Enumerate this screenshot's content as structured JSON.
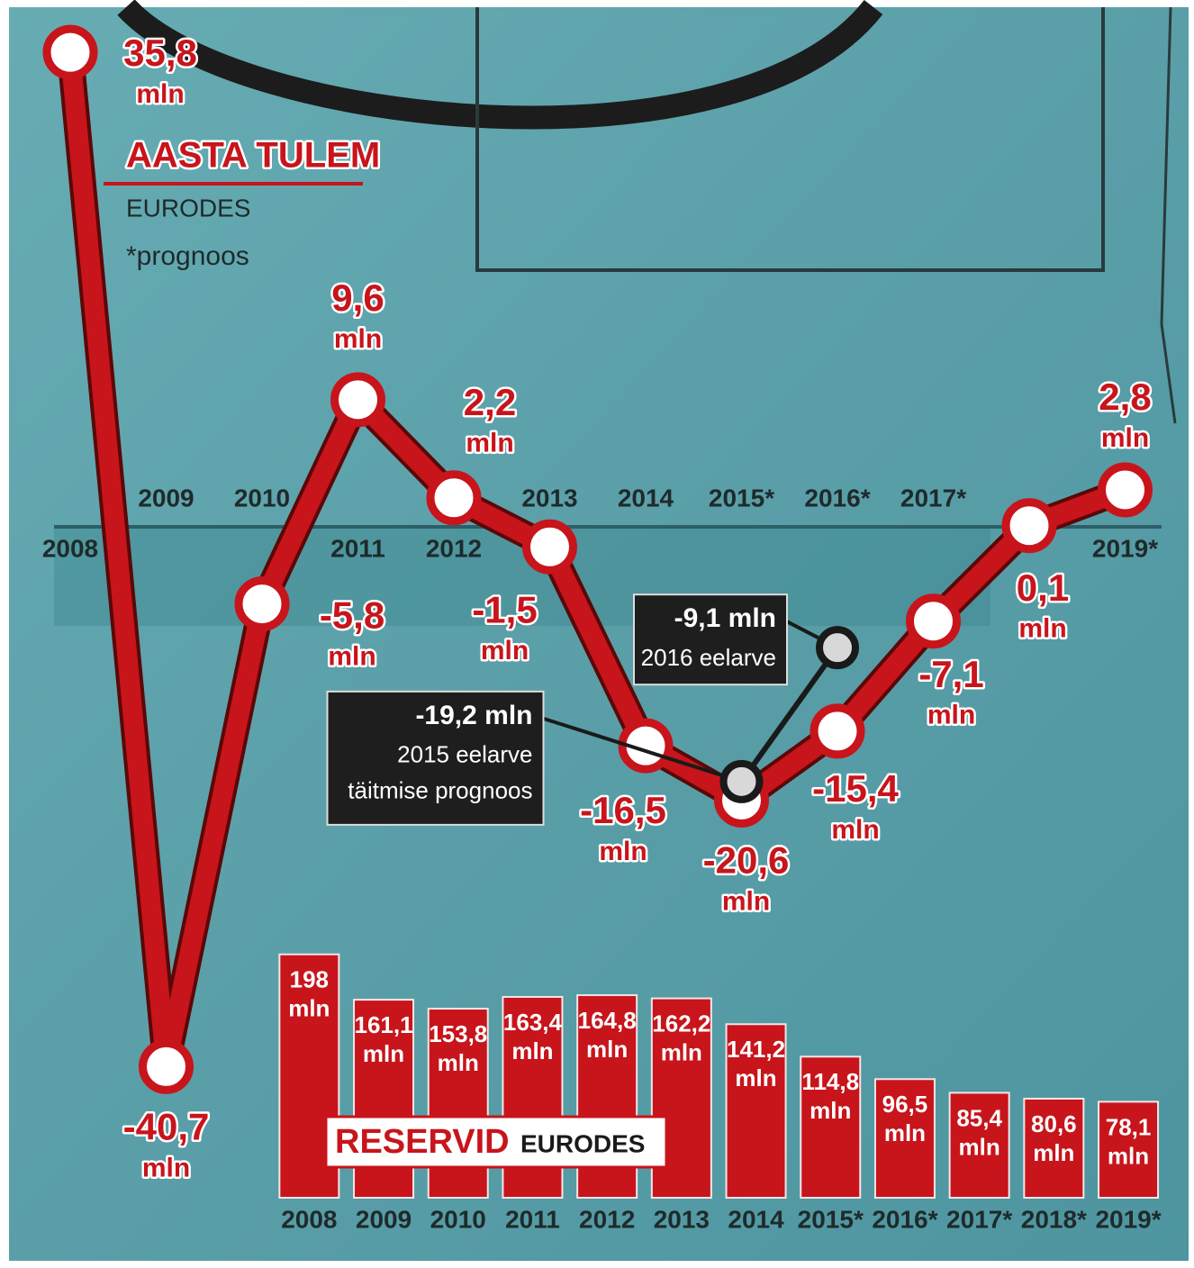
{
  "chart_data": [
    {
      "type": "line",
      "title": "AASTA TULEM",
      "subtitle": "EURODES",
      "note": "*prognoos",
      "unit": "mln",
      "categories": [
        "2008",
        "2009",
        "2010",
        "2011",
        "2012",
        "2013",
        "2014",
        "2015*",
        "2016*",
        "2017*",
        null,
        "2019*"
      ],
      "series": [
        {
          "color": "#c8141b",
          "values": [
            35.8,
            -40.7,
            -5.8,
            9.6,
            2.2,
            -1.5,
            -16.5,
            -20.6,
            -15.4,
            -7.1,
            0.1,
            2.8
          ],
          "value_labels": [
            "35,8",
            "-40,7",
            "-5,8",
            "9,6",
            "2,2",
            "-1,5",
            "-16,5",
            "-20,6",
            "-15,4",
            "-7,1",
            "0,1",
            "2,8"
          ]
        },
        {
          "color": "#1a1a1a",
          "values": [
            null,
            null,
            null,
            null,
            null,
            null,
            null,
            -19.2,
            -9.1,
            null,
            null,
            null
          ],
          "value_labels": [
            null,
            null,
            null,
            null,
            null,
            null,
            null,
            "-19,2 mln",
            "-9,1 mln",
            null,
            null,
            null
          ]
        }
      ],
      "annotations": [
        [
          "2015 eelarve",
          "täitmise prognoos"
        ],
        [
          "2016 eelarve"
        ]
      ],
      "ylim": [
        -44,
        39
      ]
    },
    {
      "type": "bar",
      "title": "RESERVID",
      "subtitle": "EURODES",
      "unit": "mln",
      "color": "#c8141b",
      "categories": [
        "2008",
        "2009",
        "2010",
        "2011",
        "2012",
        "2013",
        "2014",
        "2015*",
        "2016*",
        "2017*",
        "2018*",
        "2019*"
      ],
      "values": [
        198,
        161.1,
        153.8,
        163.4,
        164.8,
        162.2,
        141.2,
        114.8,
        96.5,
        85.4,
        80.6,
        78.1
      ],
      "value_labels": [
        "198",
        "161,1",
        "153,8",
        "163,4",
        "164,8",
        "162,2",
        "141,2",
        "114,8",
        "96,5",
        "85,4",
        "80,6",
        "78,1"
      ],
      "ylim": [
        0,
        200
      ]
    }
  ]
}
